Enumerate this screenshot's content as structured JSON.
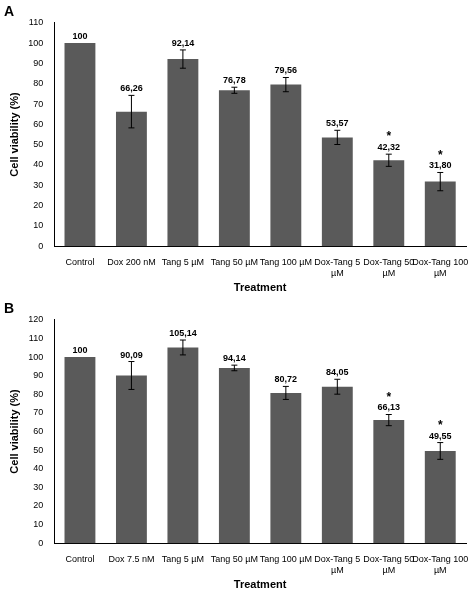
{
  "chart_data": [
    {
      "type": "bar",
      "title": "A",
      "categories": [
        "Control",
        "Dox 200 nM",
        "Tang 5 µM",
        "Tang 50 µM",
        "Tang 100 µM",
        "Dox-Tang 5 µM",
        "Dox-Tang 50 µM",
        "Dox-Tang 100 µM"
      ],
      "values": [
        100,
        66.26,
        92.14,
        76.78,
        79.56,
        53.57,
        42.32,
        31.8
      ],
      "value_labels": [
        "100",
        "66,26",
        "92,14",
        "76,78",
        "79,56",
        "53,57",
        "42,32",
        "31,80"
      ],
      "errors": [
        0,
        8,
        4.5,
        1.5,
        3.5,
        3.5,
        3,
        4.5
      ],
      "annotations": [
        {
          "category": "Dox-Tang 50 µM",
          "text": "*"
        },
        {
          "category": "Dox-Tang 100 µM",
          "text": "*"
        }
      ],
      "color": "#5a5a5a",
      "x_label": "Treatment",
      "y_label": "Cell viability (%)",
      "ylim": [
        0,
        110
      ],
      "yticks": [
        0,
        10,
        20,
        30,
        40,
        50,
        60,
        70,
        80,
        90,
        100,
        110
      ],
      "grid": false,
      "data_labels": true
    },
    {
      "type": "bar",
      "title": "B",
      "categories": [
        "Control",
        "Dox 7.5 nM",
        "Tang 5 µM",
        "Tang 50 µM",
        "Tang 100 µM",
        "Dox-Tang 5 µM",
        "Dox-Tang 50 µM",
        "Dox-Tang 100 µM"
      ],
      "values": [
        100,
        90.09,
        105.14,
        94.14,
        80.72,
        84.05,
        66.13,
        49.55
      ],
      "value_labels": [
        "100",
        "90,09",
        "105,14",
        "94,14",
        "80,72",
        "84,05",
        "66,13",
        "49,55"
      ],
      "errors": [
        0,
        7.5,
        4,
        1.5,
        3.5,
        4,
        3,
        4.5
      ],
      "annotations": [
        {
          "category": "Dox-Tang 50 µM",
          "text": "*"
        },
        {
          "category": "Dox-Tang 100 µM",
          "text": "*"
        }
      ],
      "color": "#5a5a5a",
      "x_label": "Treatment",
      "y_label": "Cell viability (%)",
      "ylim": [
        0,
        120
      ],
      "yticks": [
        0,
        10,
        20,
        30,
        40,
        50,
        60,
        70,
        80,
        90,
        100,
        110,
        120
      ],
      "grid": false,
      "data_labels": true
    }
  ]
}
